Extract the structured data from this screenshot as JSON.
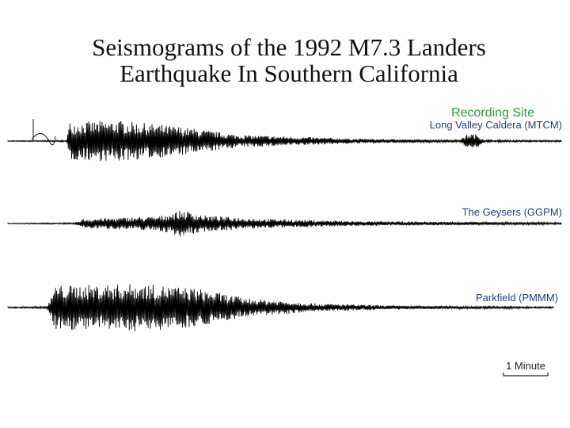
{
  "header": {
    "title_line_1": "Seismograms of the 1992 M7.3 Landers",
    "title_line_2": "Earthquake In Southern California"
  },
  "legend_heading": "Recording Site",
  "stations": [
    {
      "label": "Long Valley Caldera (MTCM)"
    },
    {
      "label": "The Geysers (GGPM)"
    },
    {
      "label": "Parkfield (PMMM)"
    }
  ],
  "scale_bar": {
    "label": "1 Minute"
  }
}
